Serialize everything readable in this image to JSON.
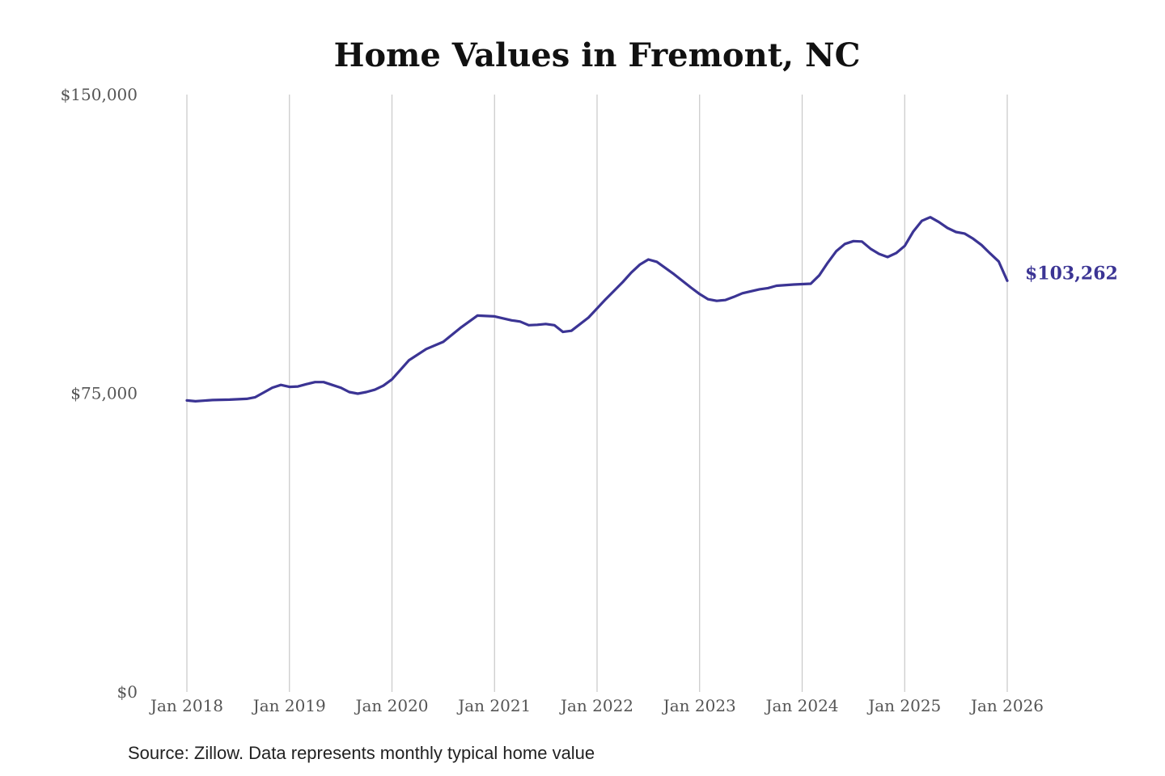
{
  "chart_data": {
    "type": "line",
    "title": "Home Values in Fremont, NC",
    "xlabel": "",
    "ylabel": "",
    "x_tick_labels": [
      "Jan 2018",
      "Jan 2019",
      "Jan 2020",
      "Jan 2021",
      "Jan 2022",
      "Jan 2023",
      "Jan 2024",
      "Jan 2025",
      "Jan 2026"
    ],
    "y_tick_labels": [
      "$0",
      "$75,000",
      "$150,000"
    ],
    "ylim": [
      0,
      150000
    ],
    "xlim": [
      "2018-01",
      "2026-01"
    ],
    "grid": "vertical",
    "line_color": "#3b3494",
    "end_label": "$103,262",
    "source": "Source: Zillow. Data represents monthly typical home value",
    "series": [
      {
        "x": [
          "2018-01",
          "2018-02",
          "2018-04",
          "2018-06",
          "2018-08",
          "2018-09",
          "2018-10",
          "2018-11",
          "2018-12",
          "2019-01",
          "2019-02",
          "2019-03",
          "2019-04",
          "2019-05",
          "2019-06",
          "2019-07",
          "2019-08",
          "2019-09",
          "2019-10",
          "2019-11",
          "2019-12",
          "2020-01",
          "2020-03",
          "2020-05",
          "2020-07",
          "2020-09",
          "2020-11",
          "2021-01",
          "2021-03",
          "2021-04",
          "2021-05",
          "2021-06",
          "2021-07",
          "2021-08",
          "2021-09",
          "2021-10",
          "2021-12",
          "2022-02",
          "2022-04",
          "2022-05",
          "2022-06",
          "2022-07",
          "2022-08",
          "2022-10",
          "2022-12",
          "2023-01",
          "2023-02",
          "2023-03",
          "2023-04",
          "2023-05",
          "2023-06",
          "2023-08",
          "2023-09",
          "2023-10",
          "2023-12",
          "2024-01",
          "2024-02",
          "2024-03",
          "2024-04",
          "2024-05",
          "2024-06",
          "2024-07",
          "2024-08",
          "2024-09",
          "2024-10",
          "2024-11",
          "2024-12",
          "2025-01",
          "2025-02",
          "2025-03",
          "2025-04",
          "2025-05",
          "2025-06",
          "2025-07",
          "2025-08",
          "2025-09",
          "2025-10",
          "2025-11",
          "2025-12",
          "2026-01"
        ],
        "values": [
          73200,
          73000,
          73300,
          73400,
          73600,
          74000,
          75200,
          76400,
          77100,
          76600,
          76700,
          77300,
          77800,
          77800,
          77100,
          76400,
          75300,
          74900,
          75300,
          75900,
          76900,
          78500,
          83300,
          86100,
          87900,
          91400,
          94500,
          94300,
          93300,
          93000,
          92100,
          92200,
          92400,
          92100,
          90400,
          90700,
          94000,
          98600,
          102900,
          105300,
          107300,
          108600,
          108000,
          104900,
          101500,
          99900,
          98600,
          98200,
          98400,
          99200,
          100100,
          101100,
          101400,
          102000,
          102300,
          102400,
          102500,
          104600,
          107800,
          110700,
          112500,
          113200,
          113100,
          111300,
          110000,
          109200,
          110200,
          112000,
          115600,
          118300,
          119200,
          118000,
          116500,
          115500,
          115100,
          113800,
          112200,
          110100,
          108100,
          103262
        ]
      }
    ]
  }
}
